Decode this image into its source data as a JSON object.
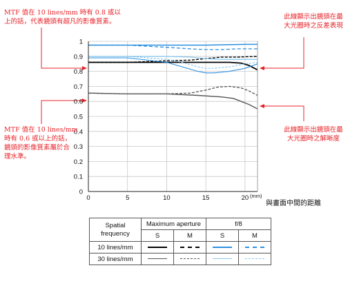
{
  "annotations": {
    "top_left": "MTF 值在 10 lines/mm 時有 0.8 或以\n上的話，代表鏡頭有超凡的影像質素。",
    "bottom_left": "MTF 值在 10 lines/mm\n時有 0.6 或以上的話，\n鏡頭的影像質素屬於合\n理水準。",
    "top_right": "此線顯示出鏡頭在最\n大光圈時之反差表現",
    "bottom_right": "此線顯示出鏡頭在最\n大光圈時之解晰度"
  },
  "legend": {
    "header_freq": "Spatial\nfrequency",
    "header_max": "Maximum aperture",
    "header_f8": "f/8",
    "s_label": "S",
    "m_label": "M",
    "row1_label": "10 lines/mm",
    "row2_label": "30 lines/mm"
  },
  "colors": {
    "annotation": "#e8232a",
    "max_10": "#000000",
    "max_30": "#555555",
    "f8_10": "#2b8fe0",
    "f8_30": "#8cc8ee"
  },
  "chart_data": {
    "type": "line",
    "xlabel": "與畫面中間的距離",
    "x_unit": "(mm)",
    "xlim": [
      0,
      21.6
    ],
    "ylim": [
      0,
      1
    ],
    "x_ticks": [
      0,
      5,
      10,
      15,
      20
    ],
    "y_ticks": [
      0,
      0.1,
      0.2,
      0.3,
      0.4,
      0.5,
      0.6,
      0.7,
      0.8,
      0.9,
      1
    ],
    "grid": true,
    "series": [
      {
        "key": "f8_10_S",
        "color": "#2b8fe0",
        "dash": "",
        "width": 1.5,
        "x": [
          0,
          5,
          10,
          15,
          20,
          21.6
        ],
        "y": [
          0.975,
          0.975,
          0.975,
          0.975,
          0.98,
          0.98
        ]
      },
      {
        "key": "f8_10_M",
        "color": "#2b8fe0",
        "dash": "5 3",
        "width": 1.3,
        "x": [
          0,
          5,
          10,
          13,
          15,
          17,
          19,
          21.6
        ],
        "y": [
          0.975,
          0.975,
          0.96,
          0.95,
          0.945,
          0.945,
          0.95,
          0.95
        ]
      },
      {
        "key": "max_10_M",
        "color": "#000000",
        "dash": "4 2",
        "width": 1.4,
        "x": [
          0,
          5,
          10,
          13,
          15,
          17,
          19,
          21.6
        ],
        "y": [
          0.86,
          0.86,
          0.87,
          0.875,
          0.885,
          0.895,
          0.895,
          0.9
        ]
      },
      {
        "key": "max_10_S",
        "color": "#000000",
        "dash": "",
        "width": 1.8,
        "x": [
          0,
          5,
          10,
          15,
          18,
          19.5,
          20.5,
          21.6
        ],
        "y": [
          0.86,
          0.86,
          0.86,
          0.86,
          0.86,
          0.855,
          0.84,
          0.81
        ]
      },
      {
        "key": "f8_30_S",
        "color": "#8cc8ee",
        "dash": "",
        "width": 1.3,
        "x": [
          0,
          5,
          10,
          13,
          15,
          17,
          19,
          21.6
        ],
        "y": [
          0.9,
          0.9,
          0.9,
          0.895,
          0.885,
          0.88,
          0.88,
          0.88
        ]
      },
      {
        "key": "f8_30_M",
        "color": "#8cc8ee",
        "dash": "3 2",
        "width": 1.2,
        "x": [
          0,
          5,
          10,
          12,
          14,
          15,
          16,
          18,
          20,
          21.6
        ],
        "y": [
          0.9,
          0.9,
          0.88,
          0.86,
          0.83,
          0.82,
          0.82,
          0.83,
          0.85,
          0.86
        ]
      },
      {
        "key": "f8_10_S_low",
        "color": "#2b8fe0",
        "dash": "",
        "width": 1.1,
        "x": [
          0,
          5,
          10,
          12,
          14,
          15,
          16,
          18,
          20,
          21.6
        ],
        "y": [
          0.89,
          0.89,
          0.86,
          0.83,
          0.8,
          0.79,
          0.79,
          0.8,
          0.82,
          0.85
        ]
      },
      {
        "key": "max_30_M",
        "color": "#555555",
        "dash": "4 2",
        "width": 1.3,
        "x": [
          0,
          5,
          10,
          13,
          15,
          16.5,
          18,
          19.5,
          20.5,
          21.6
        ],
        "y": [
          0.655,
          0.65,
          0.65,
          0.655,
          0.675,
          0.695,
          0.7,
          0.69,
          0.67,
          0.64
        ]
      },
      {
        "key": "max_30_S",
        "color": "#555555",
        "dash": "",
        "width": 1.4,
        "x": [
          0,
          5,
          10,
          14,
          17,
          18.5,
          19.5,
          20.5,
          21.6
        ],
        "y": [
          0.655,
          0.65,
          0.65,
          0.64,
          0.63,
          0.62,
          0.6,
          0.58,
          0.55
        ]
      }
    ]
  }
}
